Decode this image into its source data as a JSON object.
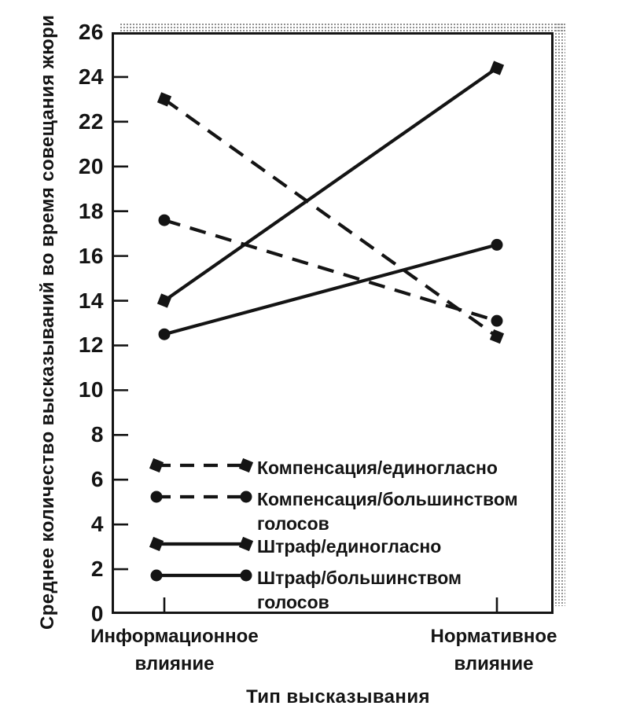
{
  "figure": {
    "background": "#ffffff",
    "ink_color": "#141414",
    "shadow_color": "#8f8f8f"
  },
  "chart_data": {
    "type": "line",
    "title": "",
    "xlabel": "Тип высказывания",
    "ylabel": "Среднее количество высказываний во время совещания жюри",
    "categories": [
      "Информационное\nвлияние",
      "Нормативное\nвлияние"
    ],
    "yticks": [
      0,
      2,
      4,
      6,
      8,
      10,
      12,
      14,
      16,
      18,
      20,
      22,
      24,
      26
    ],
    "ylim": [
      0,
      26
    ],
    "grid": false,
    "legend_position": "inside-lower-left",
    "series": [
      {
        "name": "Компенсация/единогласно",
        "label_lines": "Компенсация/единогласно",
        "line": "dashed",
        "marker": "square",
        "values": [
          23.0,
          12.4
        ]
      },
      {
        "name": "Компенсация/большинством голосов",
        "label_lines": "Компенсация/большинством\nголосов",
        "line": "dashed",
        "marker": "circle",
        "values": [
          17.6,
          13.1
        ]
      },
      {
        "name": "Штраф/единогласно",
        "label_lines": "Штраф/единогласно",
        "line": "solid",
        "marker": "square",
        "values": [
          14.0,
          24.4
        ]
      },
      {
        "name": "Штраф/большинством голосов",
        "label_lines": "Штраф/большинством\nголосов",
        "line": "solid",
        "marker": "circle",
        "values": [
          12.5,
          16.5
        ]
      }
    ]
  }
}
